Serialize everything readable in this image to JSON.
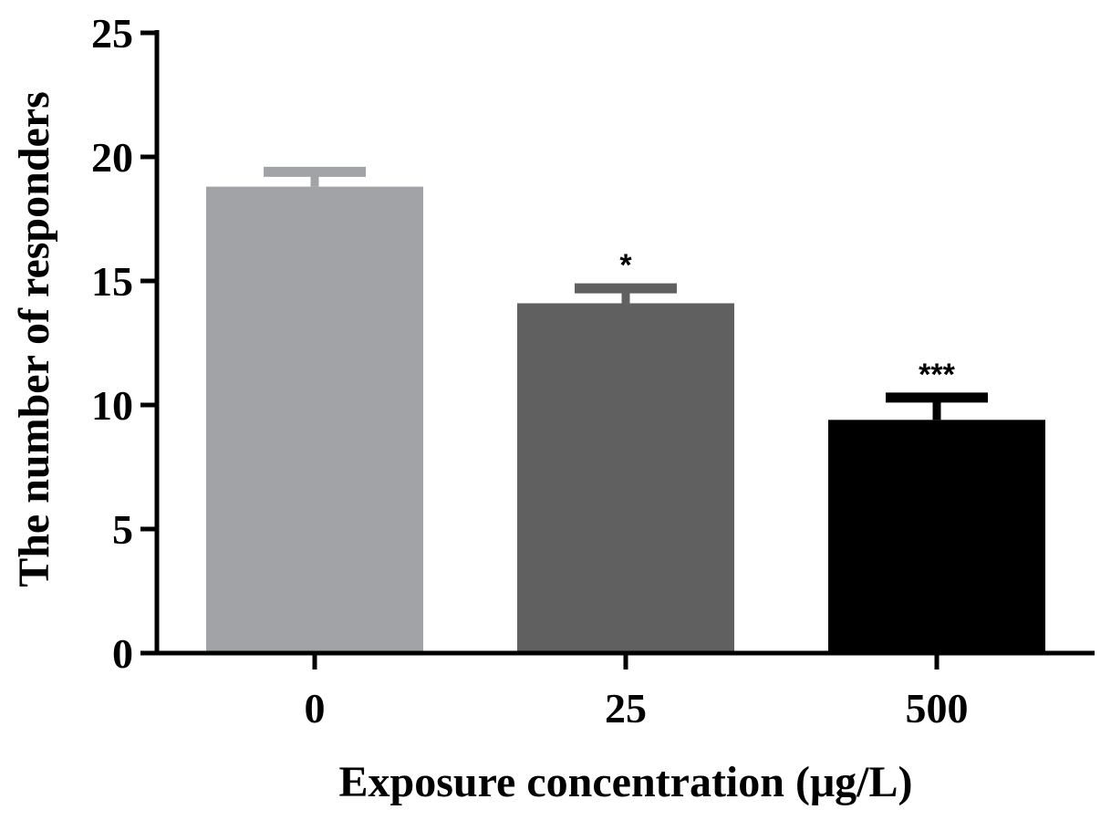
{
  "chart_data": {
    "type": "bar",
    "title": "",
    "xlabel": "Exposure concentration (μg/L)",
    "ylabel": "The number of responders",
    "categories": [
      "0",
      "25",
      "500"
    ],
    "values": [
      18.8,
      14.1,
      9.4
    ],
    "errors": [
      0.6,
      0.6,
      0.9
    ],
    "significance": [
      "",
      "*",
      "***"
    ],
    "colors": [
      "#a2a3a6",
      "#606060",
      "#000000"
    ],
    "ylim": [
      0,
      25
    ],
    "yticks": [
      0,
      5,
      10,
      15,
      20,
      25
    ],
    "grid": false,
    "legend": "none"
  }
}
